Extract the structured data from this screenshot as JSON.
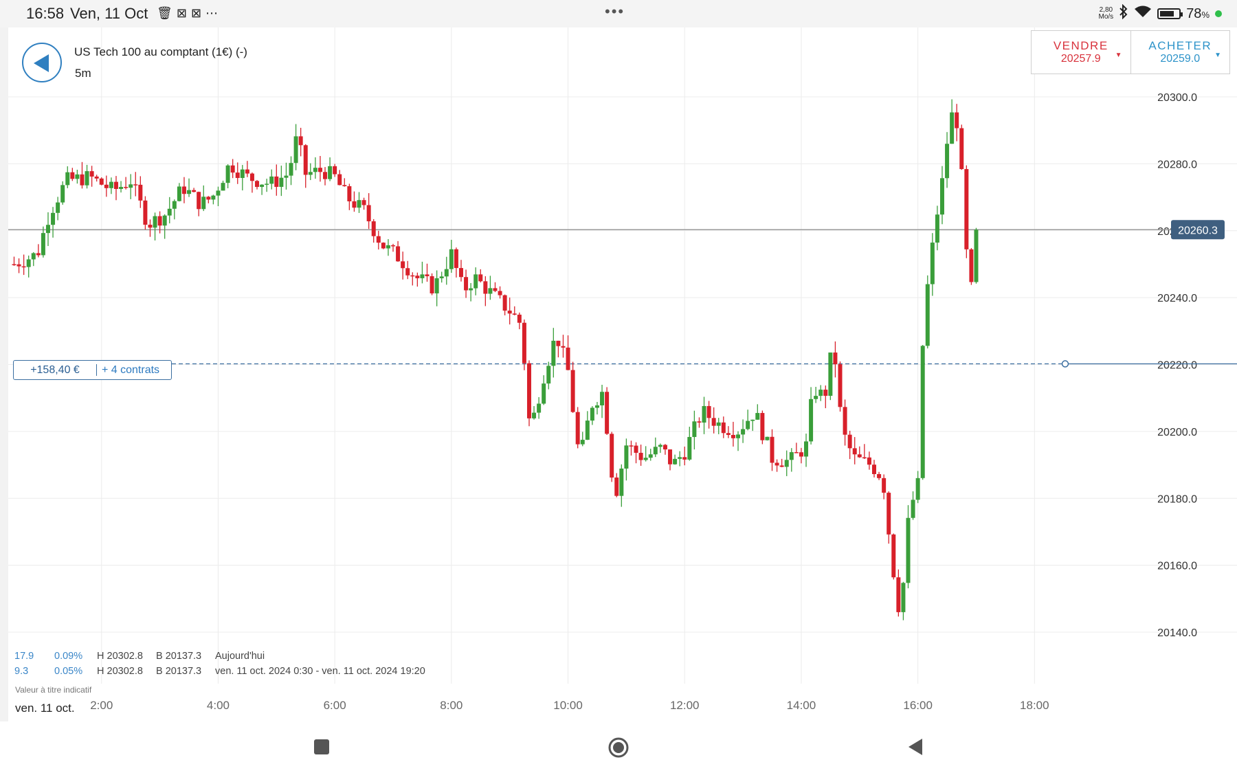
{
  "status_bar": {
    "time": "16:58",
    "date": "Ven, 11 Oct",
    "notification_icons": [
      "trash-icon",
      "video-off-icon",
      "video-off-icon"
    ],
    "more_dots": "⋯",
    "center_dots": "•••",
    "net_speed_value": "2,80",
    "net_speed_unit": "Mo/s",
    "battery": "78",
    "battery_unit": "%",
    "battery_level": 0.78
  },
  "header": {
    "instrument": "US Tech 100 au comptant (1€) (-)",
    "timeframe": "5m"
  },
  "trade": {
    "sell_label": "VENDRE",
    "sell_price": "20257.9",
    "buy_label": "ACHETER",
    "buy_price": "20259.0",
    "sell_color": "#d8323c",
    "buy_color": "#2d93c9"
  },
  "position": {
    "pnl": "+158,40 €",
    "contracts": "+ 4 contrats",
    "entry_price": 20220.2
  },
  "stats": {
    "row1": {
      "change": "17.9",
      "pct": "0.09%",
      "high": "H 20302.8",
      "low": "B 20137.3",
      "period": "Aujourd'hui"
    },
    "row2": {
      "change": "9.3",
      "pct": "0.05%",
      "high": "H 20302.8",
      "low": "B 20137.3",
      "period": "ven. 11 oct. 2024 0:30 - ven. 11 oct. 2024 19:20"
    },
    "note": "Valeur à titre indicatif",
    "date_label": "ven. 11 oct."
  },
  "chart_data": {
    "type": "candlestick",
    "timeframe": "5m",
    "current_price_label": "20260.3",
    "current_price": 20260.3,
    "colors": {
      "up": "#3a9e3a",
      "down": "#d8202a",
      "current_line": "#9a9a9a",
      "position_line": "#3a6ea0",
      "price_tag": "#3f5f80"
    },
    "x_ticks": [
      "2:00",
      "4:00",
      "6:00",
      "8:00",
      "10:00",
      "12:00",
      "14:00",
      "16:00",
      "18:00"
    ],
    "x_tick_hours": [
      2,
      4,
      6,
      8,
      10,
      12,
      14,
      16,
      18
    ],
    "x_range_hours": [
      0.4,
      20.2
    ],
    "y_ticks": [
      "20140.0",
      "20160.0",
      "20180.0",
      "20200.0",
      "20220.0",
      "20240.0",
      "20260.0",
      "20280.0",
      "20300.0"
    ],
    "y_range": [
      20140,
      20300
    ],
    "close_path": [
      [
        0.5,
        20250
      ],
      [
        0.9,
        20253
      ],
      [
        1.1,
        20265
      ],
      [
        1.4,
        20275
      ],
      [
        1.8,
        20276
      ],
      [
        2.2,
        20272
      ],
      [
        2.5,
        20275
      ],
      [
        2.8,
        20262
      ],
      [
        3.1,
        20265
      ],
      [
        3.4,
        20273
      ],
      [
        3.7,
        20268
      ],
      [
        3.9,
        20270
      ],
      [
        4.2,
        20280
      ],
      [
        4.5,
        20276
      ],
      [
        4.9,
        20274
      ],
      [
        5.2,
        20277
      ],
      [
        5.35,
        20288
      ],
      [
        5.5,
        20277
      ],
      [
        5.8,
        20278
      ],
      [
        6.0,
        20276
      ],
      [
        6.2,
        20270
      ],
      [
        6.5,
        20266
      ],
      [
        6.8,
        20256
      ],
      [
        7.1,
        20252
      ],
      [
        7.4,
        20246
      ],
      [
        7.7,
        20243
      ],
      [
        8.0,
        20253
      ],
      [
        8.2,
        20242
      ],
      [
        8.4,
        20246
      ],
      [
        8.7,
        20241
      ],
      [
        9.0,
        20236
      ],
      [
        9.2,
        20232
      ],
      [
        9.35,
        20200
      ],
      [
        9.6,
        20218
      ],
      [
        9.8,
        20229
      ],
      [
        10.0,
        20218
      ],
      [
        10.2,
        20191
      ],
      [
        10.4,
        20208
      ],
      [
        10.6,
        20212
      ],
      [
        10.8,
        20180
      ],
      [
        11.0,
        20196
      ],
      [
        11.3,
        20192
      ],
      [
        11.6,
        20195
      ],
      [
        11.8,
        20190
      ],
      [
        12.0,
        20194
      ],
      [
        12.3,
        20206
      ],
      [
        12.6,
        20202
      ],
      [
        12.9,
        20200
      ],
      [
        13.2,
        20206
      ],
      [
        13.5,
        20192
      ],
      [
        13.8,
        20191
      ],
      [
        14.1,
        20196
      ],
      [
        14.2,
        20213
      ],
      [
        14.4,
        20210
      ],
      [
        14.55,
        20227
      ],
      [
        14.7,
        20200
      ],
      [
        14.9,
        20192
      ],
      [
        15.2,
        20190
      ],
      [
        15.4,
        20186
      ],
      [
        15.55,
        20162
      ],
      [
        15.7,
        20144
      ],
      [
        15.85,
        20176
      ],
      [
        16.0,
        20184
      ],
      [
        16.1,
        20234
      ],
      [
        16.3,
        20262
      ],
      [
        16.45,
        20278
      ],
      [
        16.55,
        20295
      ],
      [
        16.7,
        20292
      ],
      [
        16.8,
        20260
      ],
      [
        16.9,
        20239
      ],
      [
        17.0,
        20260.3
      ]
    ]
  }
}
